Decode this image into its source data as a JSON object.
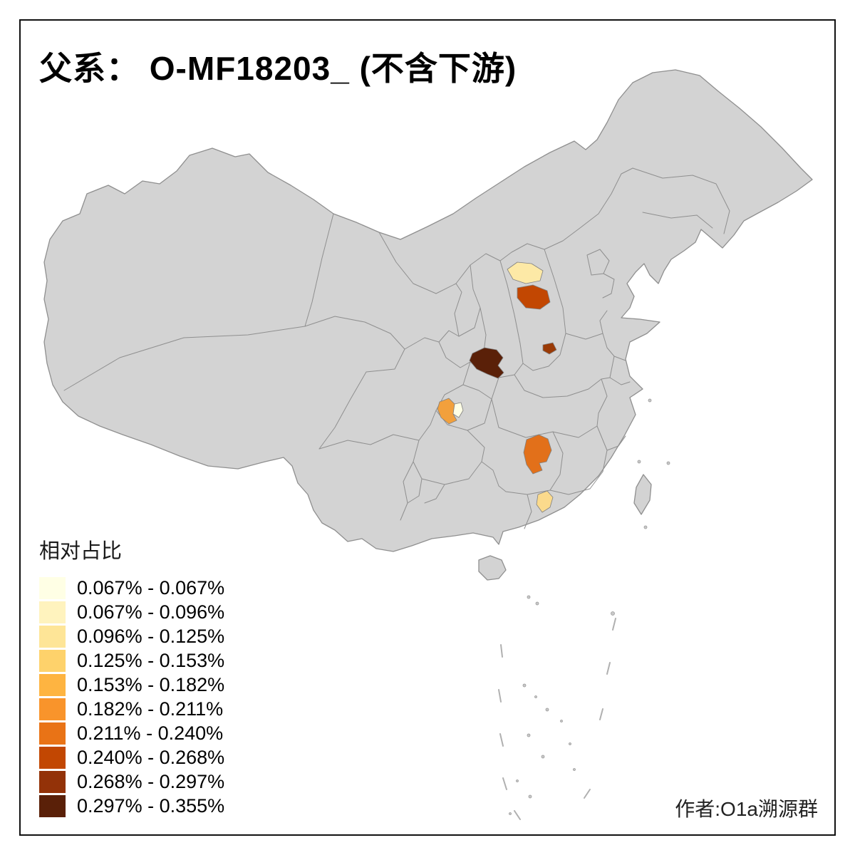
{
  "title": "父系： O-MF18203_ (不含下游)",
  "attribution": "作者:O1a溯源群",
  "legend": {
    "title": "相对占比",
    "items": [
      {
        "label": "0.067% - 0.067%",
        "color": "#FFFFE5"
      },
      {
        "label": "0.067% - 0.096%",
        "color": "#FFF3BE"
      },
      {
        "label": "0.096% - 0.125%",
        "color": "#FEE597"
      },
      {
        "label": "0.125% - 0.153%",
        "color": "#FED26B"
      },
      {
        "label": "0.153% - 0.182%",
        "color": "#FEB441"
      },
      {
        "label": "0.182% - 0.211%",
        "color": "#F9942B"
      },
      {
        "label": "0.211% - 0.240%",
        "color": "#E97316"
      },
      {
        "label": "0.240% - 0.268%",
        "color": "#C24702"
      },
      {
        "label": "0.268% - 0.297%",
        "color": "#933208"
      },
      {
        "label": "0.297% - 0.355%",
        "color": "#5A2008"
      }
    ]
  },
  "map": {
    "base_fill": "#D3D3D3",
    "boundary_color": "#8F8F8F",
    "background": "#FFFFFF",
    "regions": [
      {
        "id": "region-1",
        "legend_class": "0.067% - 0.096%",
        "color": "#FDE9A6"
      },
      {
        "id": "region-2",
        "legend_class": "0.240% - 0.268%",
        "color": "#C24702"
      },
      {
        "id": "region-3",
        "legend_class": "0.268% - 0.297%",
        "color": "#9A3A06"
      },
      {
        "id": "region-4",
        "legend_class": "0.297% - 0.355%",
        "color": "#5A2008"
      },
      {
        "id": "region-5",
        "legend_class": "0.153% - 0.182%",
        "color": "#F2A03C"
      },
      {
        "id": "region-6",
        "legend_class": "0.067% - 0.067%",
        "color": "#FFFFE5"
      },
      {
        "id": "region-7",
        "legend_class": "0.211% - 0.240%",
        "color": "#E2701A"
      },
      {
        "id": "region-8",
        "legend_class": "0.096% - 0.125%",
        "color": "#FBDA8C"
      }
    ]
  },
  "chart_data": {
    "type": "choropleth-map",
    "title": "父系： O-MF18203_ (不含下游)",
    "legend_title": "相对占比",
    "classes": [
      "0.067% - 0.067%",
      "0.067% - 0.096%",
      "0.096% - 0.125%",
      "0.125% - 0.153%",
      "0.153% - 0.182%",
      "0.182% - 0.211%",
      "0.211% - 0.240%",
      "0.240% - 0.268%",
      "0.268% - 0.297%",
      "0.297% - 0.355%"
    ],
    "value_min": "0.067%",
    "value_max": "0.355%",
    "highlighted_region_count": 8
  }
}
